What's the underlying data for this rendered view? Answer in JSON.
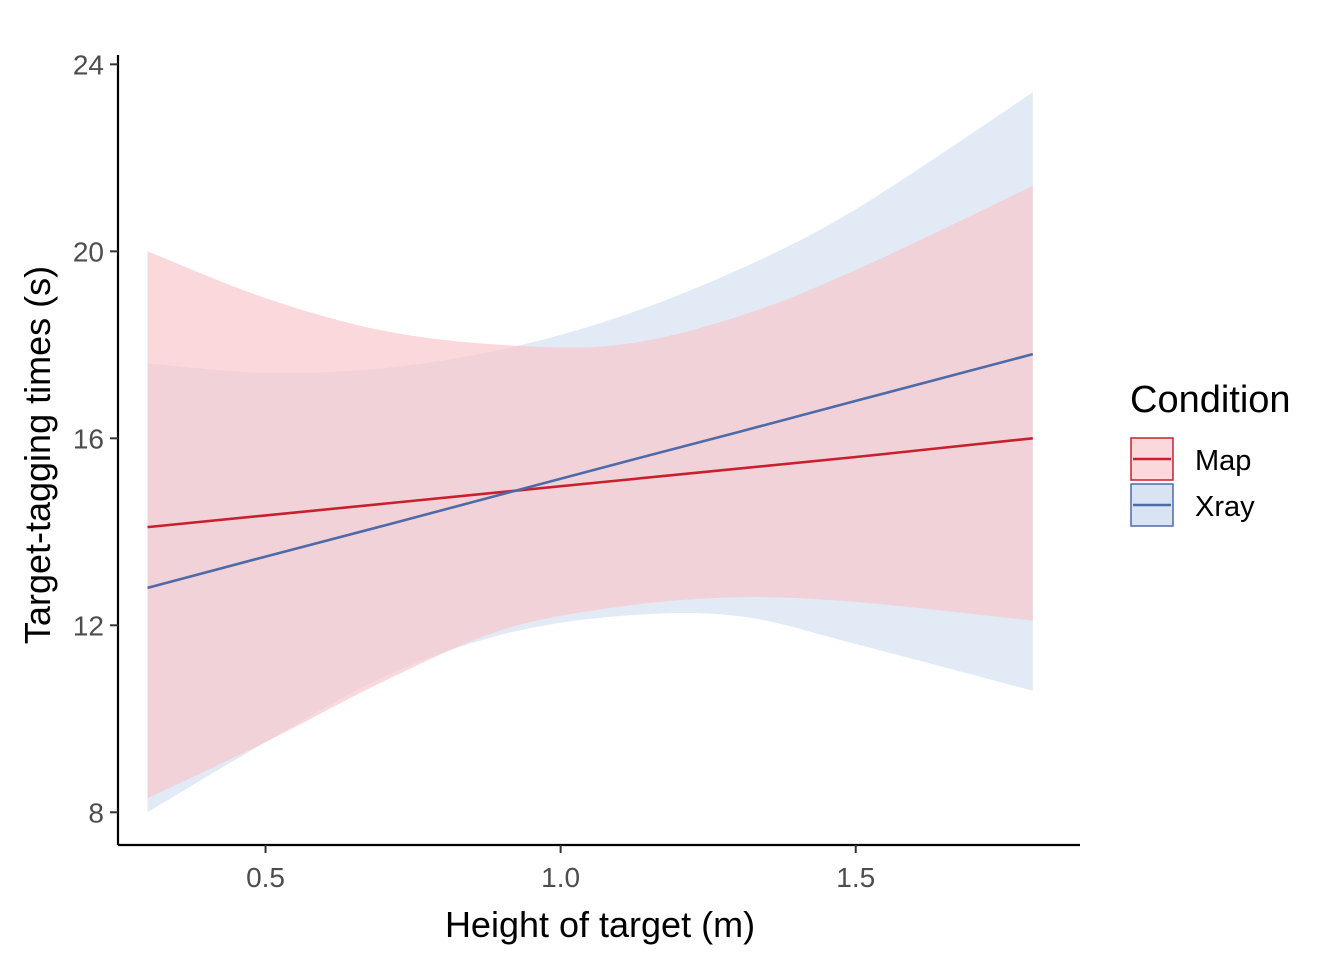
{
  "chart_data": {
    "type": "line",
    "title": "",
    "xlabel": "Height of target (m)",
    "ylabel": "Target-tagging times (s)",
    "xlim": [
      0.25,
      1.88
    ],
    "ylim": [
      7.3,
      24.2
    ],
    "x_ticks": [
      0.5,
      1.0,
      1.5
    ],
    "x_tick_labels": [
      "0.5",
      "1.0",
      "1.5"
    ],
    "y_ticks": [
      8,
      12,
      16,
      20,
      24
    ],
    "y_tick_labels": [
      "8",
      "12",
      "16",
      "20",
      "24"
    ],
    "grid": false,
    "legend": {
      "title": "Condition",
      "placement": "right"
    },
    "series": [
      {
        "name": "Map",
        "color": "#c8202f",
        "band_color": "#f8c8cc",
        "band_opacity": 0.7,
        "x": [
          0.3,
          0.5,
          0.7,
          0.9,
          1.1,
          1.3,
          1.5,
          1.8
        ],
        "y": [
          14.1,
          14.35,
          14.6,
          14.85,
          15.1,
          15.35,
          15.6,
          16.0
        ],
        "upper": [
          20.0,
          19.0,
          18.3,
          18.0,
          18.0,
          18.6,
          19.6,
          21.4
        ],
        "lower": [
          8.3,
          9.5,
          10.8,
          11.9,
          12.4,
          12.6,
          12.5,
          12.1
        ]
      },
      {
        "name": "Xray",
        "color": "#4f6aa8",
        "band_color": "#c9d9ec",
        "band_opacity": 0.55,
        "x": [
          0.3,
          0.5,
          0.7,
          0.9,
          1.1,
          1.3,
          1.5,
          1.8
        ],
        "y": [
          12.8,
          13.47,
          14.13,
          14.8,
          15.47,
          16.13,
          16.8,
          17.8
        ],
        "upper": [
          17.6,
          17.4,
          17.5,
          17.9,
          18.6,
          19.6,
          20.9,
          23.4
        ],
        "lower": [
          8.0,
          9.5,
          10.9,
          11.8,
          12.2,
          12.2,
          11.6,
          10.6
        ]
      }
    ]
  }
}
